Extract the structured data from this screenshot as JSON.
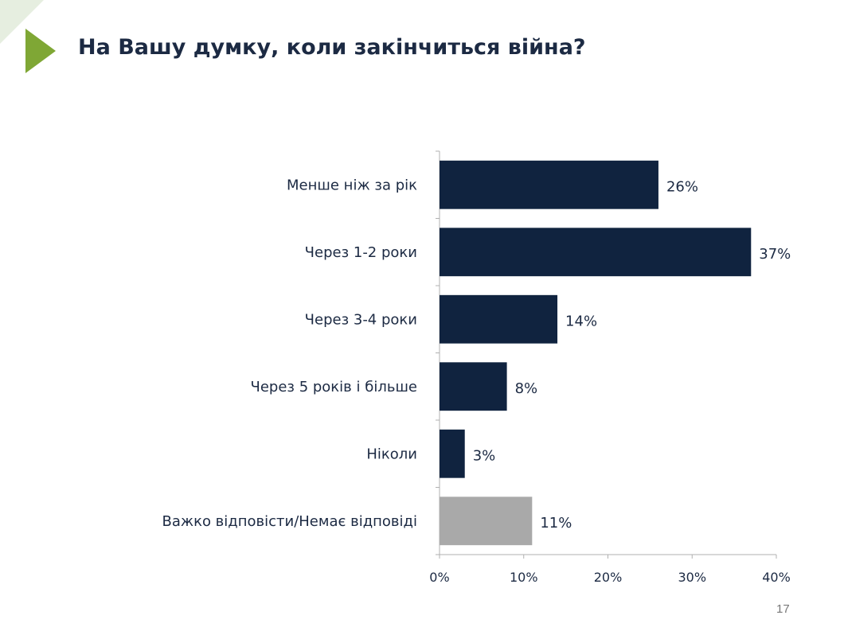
{
  "slide": {
    "title": "На Вашу думку, коли закінчиться війна?",
    "page_number": "17"
  },
  "colors": {
    "accent": "#7fa735",
    "accent_light": "#e6eee0",
    "bar_primary": "#10233f",
    "bar_secondary": "#a9a9a9",
    "text": "#1c2a43"
  },
  "icons": {
    "corner": "play-triangle-icon"
  },
  "chart_data": {
    "type": "bar",
    "orientation": "horizontal",
    "categories": [
      "Менше ніж за рік",
      "Через 1-2 роки",
      "Через 3-4 роки",
      "Через 5 років і більше",
      "Ніколи",
      "Важко відповісти/Немає відповіді"
    ],
    "values": [
      26,
      37,
      14,
      8,
      3,
      11
    ],
    "value_labels": [
      "26%",
      "37%",
      "14%",
      "8%",
      "3%",
      "11%"
    ],
    "bar_colors": [
      "#10233f",
      "#10233f",
      "#10233f",
      "#10233f",
      "#10233f",
      "#a9a9a9"
    ],
    "xlim": [
      0,
      40
    ],
    "xticks": [
      0,
      10,
      20,
      30,
      40
    ],
    "xtick_labels": [
      "0%",
      "10%",
      "20%",
      "30%",
      "40%"
    ],
    "grid": false,
    "legend": "none"
  }
}
